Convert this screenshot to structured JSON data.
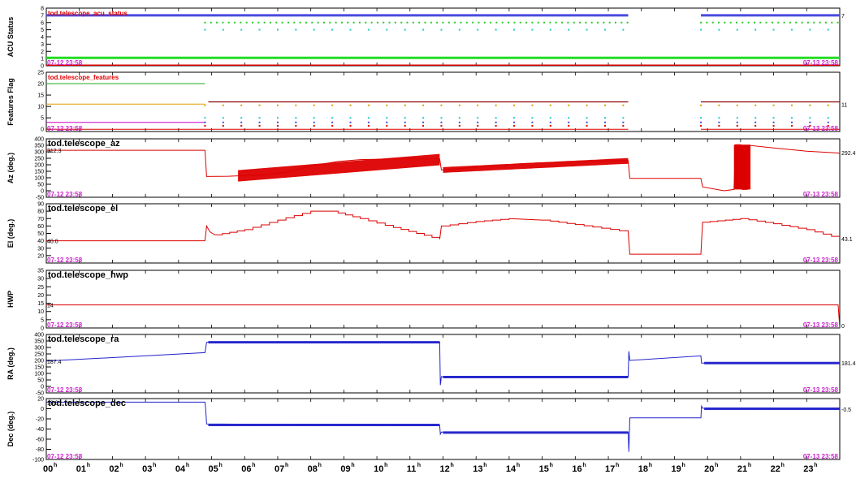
{
  "chart_data": {
    "type": "line",
    "x_axis": {
      "range_hours": [
        0,
        24
      ],
      "tick_labels": [
        "00",
        "01",
        "02",
        "03",
        "04",
        "05",
        "06",
        "07",
        "08",
        "09",
        "10",
        "11",
        "12",
        "13",
        "14",
        "15",
        "16",
        "17",
        "18",
        "19",
        "20",
        "21",
        "22",
        "23"
      ],
      "tick_suffix": "h"
    },
    "panels": [
      {
        "title": "tod.telescope_acu_status",
        "ylabel": "ACU Status",
        "ylim": [
          0,
          8
        ],
        "ticks": [
          0,
          1,
          2,
          3,
          4,
          5,
          6,
          7,
          8
        ],
        "start_label": "07-12 23:58",
        "end_label": "07-13 23:58",
        "left_value": "",
        "right_value": "7",
        "title_color": "#e00000",
        "series": [
          {
            "type": "steps",
            "color": "#4a4ae0",
            "points": [
              [
                0,
                7
              ],
              [
                17.6,
                7
              ]
            ],
            "width": 3
          },
          {
            "type": "steps",
            "color": "#4a4ae0",
            "points": [
              [
                19.8,
                7
              ],
              [
                24,
                7
              ]
            ],
            "width": 3
          },
          {
            "type": "dots",
            "color": "#22cc22",
            "y": 6,
            "ranges": [
              [
                4.8,
                17.6
              ],
              [
                19.8,
                24
              ]
            ]
          },
          {
            "type": "dots",
            "color": "#22cccc",
            "y": 5,
            "ranges": [
              [
                4.8,
                17.6
              ],
              [
                19.8,
                24
              ]
            ],
            "sparse": true
          },
          {
            "type": "steps",
            "color": "#22dd22",
            "points": [
              [
                0,
                1.1
              ],
              [
                24,
                1.1
              ]
            ],
            "width": 3
          },
          {
            "type": "steps",
            "color": "#dd0000",
            "points": [
              [
                0,
                0
              ],
              [
                24,
                0
              ]
            ],
            "width": 3
          }
        ]
      },
      {
        "title": "tod.telescope_features",
        "ylabel": "Features Flag",
        "ylim": [
          -1,
          25
        ],
        "ticks": [
          0,
          5,
          10,
          15,
          20,
          25
        ],
        "start_label": "07-12 23:58",
        "end_label": "07-13 23:58",
        "left_value": "",
        "right_value": "11",
        "title_color": "#e00000",
        "series": [
          {
            "type": "steps",
            "color": "#22aa22",
            "points": [
              [
                0,
                20
              ],
              [
                4.8,
                20
              ]
            ],
            "width": 1
          },
          {
            "type": "steps",
            "color": "#e0a000",
            "points": [
              [
                0,
                11
              ],
              [
                4.8,
                11
              ]
            ],
            "width": 1
          },
          {
            "type": "steps",
            "color": "#8b0000",
            "points": [
              [
                4.9,
                12
              ],
              [
                17.6,
                12
              ]
            ],
            "width": 1.2
          },
          {
            "type": "steps",
            "color": "#8b0000",
            "points": [
              [
                19.8,
                12
              ],
              [
                24,
                12
              ]
            ],
            "width": 1.2
          },
          {
            "type": "steps",
            "color": "#cc00cc",
            "points": [
              [
                0,
                3
              ],
              [
                4.8,
                3
              ]
            ],
            "width": 1
          },
          {
            "type": "steps",
            "color": "#dd0000",
            "points": [
              [
                0,
                0
              ],
              [
                17.6,
                0
              ]
            ],
            "width": 1
          },
          {
            "type": "steps",
            "color": "#dd0000",
            "points": [
              [
                19.8,
                0
              ],
              [
                24,
                0
              ]
            ],
            "width": 1
          },
          {
            "type": "dots",
            "color": "#e0a000",
            "y": 10.5,
            "ranges": [
              [
                4.8,
                17.6
              ],
              [
                19.8,
                24
              ]
            ],
            "sparse": true
          },
          {
            "type": "dots",
            "color": "#22cccc",
            "y": 5,
            "ranges": [
              [
                4.8,
                17.6
              ],
              [
                19.8,
                24
              ]
            ],
            "sparse": true
          },
          {
            "type": "dots",
            "color": "#4a4ae0",
            "y": 3,
            "ranges": [
              [
                4.8,
                17.6
              ],
              [
                19.8,
                24
              ]
            ],
            "sparse": true
          },
          {
            "type": "dots",
            "color": "#dd0000",
            "y": 1.5,
            "ranges": [
              [
                4.8,
                17.6
              ],
              [
                19.8,
                24
              ]
            ],
            "sparse": true
          }
        ]
      },
      {
        "title": "tod.telescope_az",
        "ylabel": "Az (deg.)",
        "ylim": [
          -50,
          400
        ],
        "ticks": [
          -50,
          0,
          50,
          100,
          150,
          200,
          250,
          300,
          350,
          400
        ],
        "start_label": "07-12 23:58",
        "end_label": "07-13 23:58",
        "left_value": "312.3",
        "right_value": "292.4",
        "title_color": "#000000",
        "series": [
          {
            "type": "line",
            "color": "#dd0000",
            "width": 1,
            "points": [
              [
                0,
                312
              ],
              [
                4.8,
                312
              ],
              [
                4.85,
                110
              ],
              [
                5.5,
                112
              ],
              [
                6.5,
                122
              ],
              [
                7.2,
                140
              ],
              [
                8.0,
                190
              ],
              [
                8.8,
                225
              ],
              [
                9.5,
                240
              ],
              [
                10.5,
                245
              ],
              [
                11.9,
                245
              ],
              [
                11.95,
                160
              ],
              [
                12.5,
                170
              ],
              [
                13.5,
                195
              ],
              [
                14.5,
                210
              ],
              [
                15.5,
                220
              ],
              [
                16.5,
                228
              ],
              [
                17.6,
                232
              ],
              [
                17.65,
                95
              ],
              [
                19.8,
                95
              ],
              [
                19.85,
                30
              ],
              [
                20.5,
                0
              ],
              [
                20.8,
                10
              ],
              [
                20.85,
                355
              ],
              [
                21.0,
                355
              ],
              [
                21.05,
                10
              ],
              [
                21.2,
                10
              ],
              [
                21.25,
                350
              ],
              [
                22.0,
                330
              ],
              [
                23.0,
                305
              ],
              [
                24,
                290
              ]
            ]
          },
          {
            "type": "band",
            "color": "#dd0000",
            "x0": 5.8,
            "x1": 11.9,
            "y0a": 115,
            "y0b": 240,
            "thickness": 14
          },
          {
            "type": "band",
            "color": "#dd0000",
            "x0": 12.0,
            "x1": 17.6,
            "y0a": 160,
            "y0b": 230,
            "thickness": 7
          },
          {
            "type": "block",
            "color": "#dd0000",
            "x0": 20.8,
            "x1": 21.3,
            "y0": 10,
            "y1": 355
          }
        ]
      },
      {
        "title": "tod.telescope_el",
        "ylabel": "El (deg.)",
        "ylim": [
          10,
          90
        ],
        "ticks": [
          20,
          30,
          40,
          50,
          60,
          70,
          80,
          90
        ],
        "start_label": "07-12 23:58",
        "end_label": "07-13 23:58",
        "left_value": "40.0",
        "right_value": "43.1",
        "title_color": "#000000",
        "series": [
          {
            "type": "stairs",
            "color": "#dd0000",
            "width": 1,
            "points": [
              [
                0,
                40
              ],
              [
                4.8,
                40
              ],
              [
                4.85,
                60
              ],
              [
                4.95,
                52
              ],
              [
                5.1,
                48
              ],
              [
                6.0,
                55
              ],
              [
                7.0,
                68
              ],
              [
                8.0,
                80
              ],
              [
                8.6,
                80
              ],
              [
                9.5,
                70
              ],
              [
                10.5,
                58
              ],
              [
                11.9,
                42
              ],
              [
                11.95,
                60
              ],
              [
                13.0,
                66
              ],
              [
                14.0,
                70
              ],
              [
                15.0,
                68
              ],
              [
                16.0,
                62
              ],
              [
                17.6,
                52
              ],
              [
                17.65,
                22
              ],
              [
                19.8,
                22
              ],
              [
                19.85,
                65
              ],
              [
                21.0,
                70
              ],
              [
                22.0,
                63
              ],
              [
                23.0,
                55
              ],
              [
                24,
                43
              ]
            ]
          }
        ]
      },
      {
        "title": "tod.telescope_hwp",
        "ylabel": "HWP",
        "ylim": [
          0,
          35
        ],
        "ticks": [
          0,
          5,
          10,
          15,
          20,
          25,
          30,
          35
        ],
        "start_label": "07-12 23:58",
        "end_label": "07-13 23:58",
        "left_value": "14",
        "right_value": "0",
        "title_color": "#000000",
        "series": [
          {
            "type": "line",
            "color": "#dd0000",
            "width": 1,
            "points": [
              [
                0,
                14
              ],
              [
                23.95,
                14
              ],
              [
                24,
                0
              ]
            ]
          }
        ]
      },
      {
        "title": "tod.telescope_ra",
        "ylabel": "RA (deg.)",
        "ylim": [
          -50,
          400
        ],
        "ticks": [
          -50,
          0,
          50,
          100,
          150,
          200,
          250,
          300,
          350,
          400
        ],
        "start_label": "07-12 23:58",
        "end_label": "07-13 23:58",
        "left_value": "187.4",
        "right_value": "181.4",
        "title_color": "#000000",
        "series": [
          {
            "type": "line",
            "color": "#2222cc",
            "width": 1,
            "points": [
              [
                0,
                195
              ],
              [
                4.8,
                260
              ],
              [
                4.85,
                340
              ],
              [
                11.9,
                340
              ],
              [
                11.92,
                10
              ],
              [
                11.95,
                75
              ],
              [
                17.6,
                75
              ],
              [
                17.62,
                270
              ],
              [
                17.65,
                200
              ],
              [
                19.8,
                235
              ],
              [
                19.82,
                180
              ],
              [
                24,
                180
              ]
            ]
          },
          {
            "type": "band",
            "color": "#2222cc",
            "x0": 4.9,
            "x1": 11.9,
            "y0a": 340,
            "y0b": 340,
            "thickness": 3
          },
          {
            "type": "band",
            "color": "#2222cc",
            "x0": 12.0,
            "x1": 17.6,
            "y0a": 72,
            "y0b": 72,
            "thickness": 3
          },
          {
            "type": "band",
            "color": "#2222cc",
            "x0": 19.9,
            "x1": 24,
            "y0a": 180,
            "y0b": 180,
            "thickness": 3
          }
        ]
      },
      {
        "title": "tod.telescope_dec",
        "ylabel": "Dec (deg.)",
        "ylim": [
          -100,
          20
        ],
        "ticks": [
          -100,
          -80,
          -60,
          -40,
          -20,
          0,
          20
        ],
        "start_label": "07-12 23:58",
        "end_label": "07-13 23:58",
        "left_value": "13.0",
        "right_value": "-0.5",
        "title_color": "#000000",
        "series": [
          {
            "type": "line",
            "color": "#2222cc",
            "width": 1,
            "points": [
              [
                0,
                13
              ],
              [
                4.8,
                13
              ],
              [
                4.82,
                0
              ],
              [
                4.85,
                -30
              ],
              [
                11.9,
                -33
              ],
              [
                11.92,
                -50
              ],
              [
                11.95,
                -46
              ],
              [
                17.6,
                -46
              ],
              [
                17.62,
                -85
              ],
              [
                17.65,
                -18
              ],
              [
                19.8,
                -18
              ],
              [
                19.82,
                5
              ],
              [
                19.85,
                1
              ],
              [
                24,
                -0.5
              ]
            ]
          },
          {
            "type": "band",
            "color": "#2222cc",
            "x0": 4.9,
            "x1": 11.9,
            "y0a": -32,
            "y0b": -32,
            "thickness": 3
          },
          {
            "type": "band",
            "color": "#2222cc",
            "x0": 12.0,
            "x1": 17.6,
            "y0a": -47,
            "y0b": -47,
            "thickness": 3
          },
          {
            "type": "band",
            "color": "#2222cc",
            "x0": 19.9,
            "x1": 24,
            "y0a": 0,
            "y0b": 0,
            "thickness": 3
          }
        ]
      }
    ]
  }
}
